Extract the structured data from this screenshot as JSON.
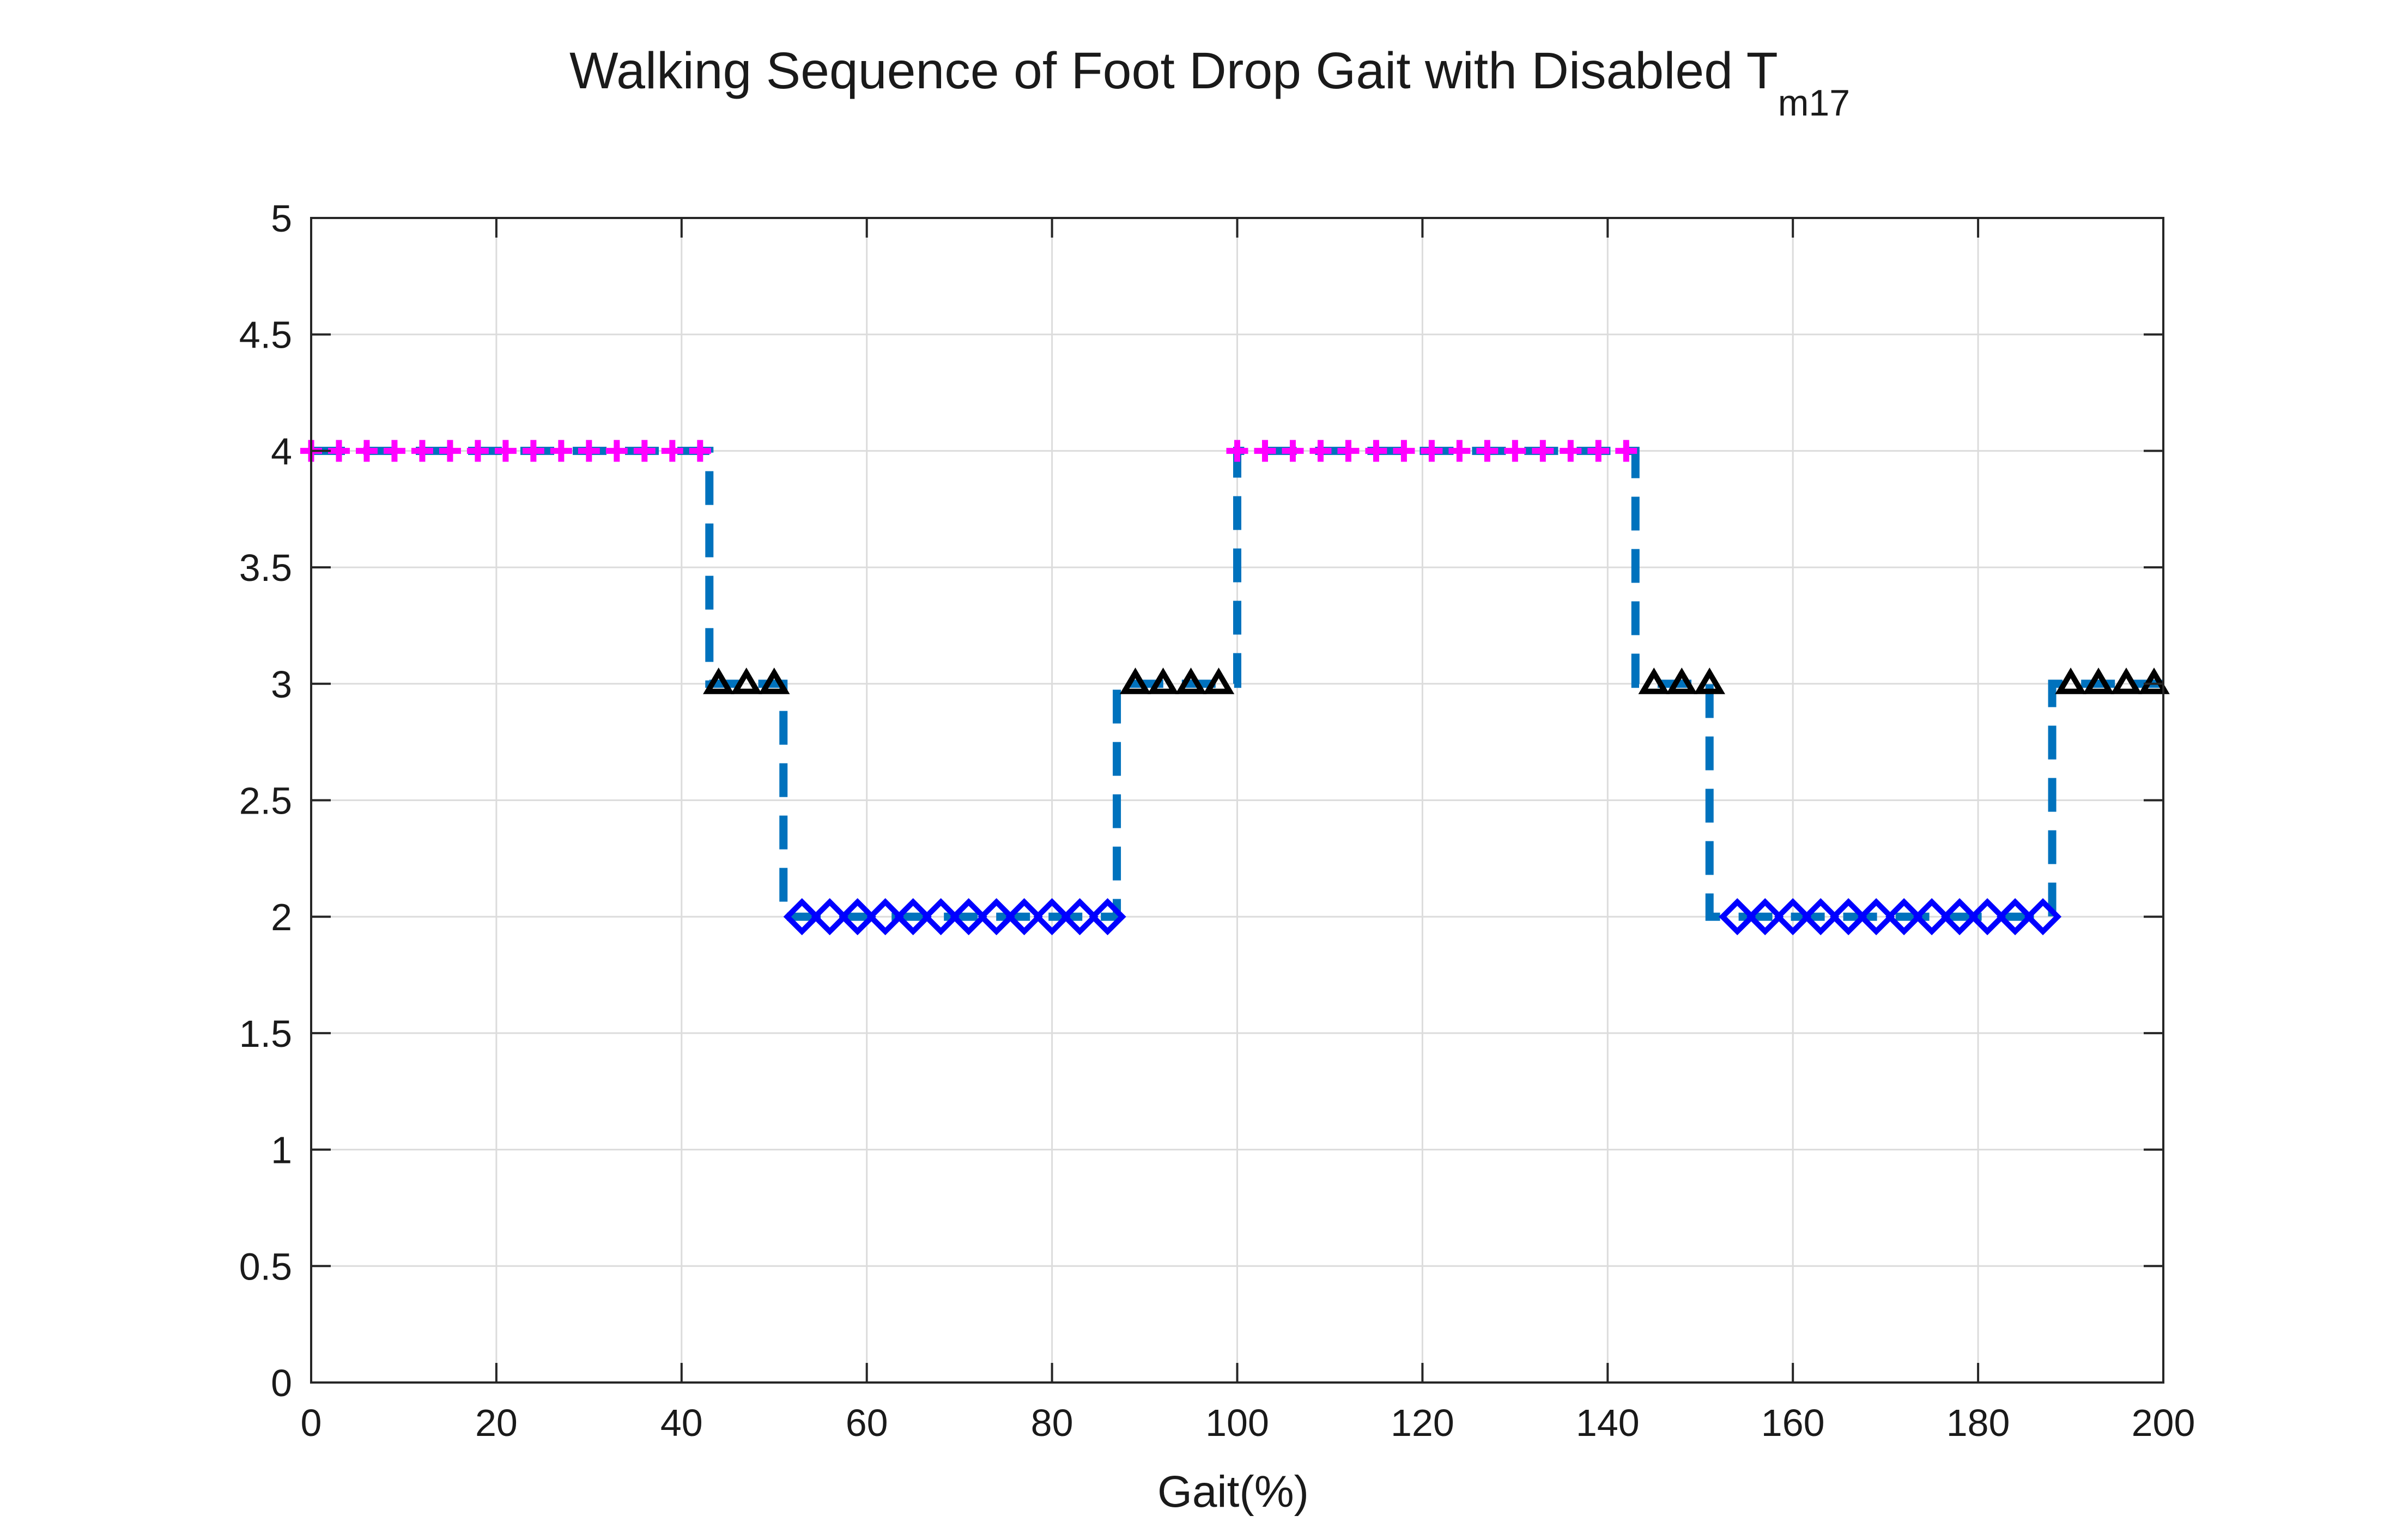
{
  "chart_data": {
    "type": "line",
    "title": "Walking Sequence of Foot Drop Gait with Disabled T",
    "title_subscript": "m17",
    "xlabel": "Gait(%)",
    "ylabel": "",
    "xlim": [
      0,
      200
    ],
    "ylim": [
      0,
      5
    ],
    "xticks": [
      0,
      20,
      40,
      60,
      80,
      100,
      120,
      140,
      160,
      180,
      200
    ],
    "xtick_labels": [
      "0",
      "20",
      "40",
      "60",
      "80",
      "100",
      "120",
      "140",
      "160",
      "180",
      "200"
    ],
    "yticks": [
      0,
      0.5,
      1,
      1.5,
      2,
      2.5,
      3,
      3.5,
      4,
      4.5,
      5
    ],
    "ytick_labels": [
      "0",
      "0.5",
      "1",
      "1.5",
      "2",
      "2.5",
      "3",
      "3.5",
      "4",
      "4.5",
      "5"
    ],
    "grid": true,
    "legend": "none",
    "line": {
      "style": "dashed",
      "color": "#0072BD",
      "x": [
        0,
        43,
        43,
        51,
        51,
        87,
        87,
        100,
        100,
        143,
        143,
        151,
        151,
        188,
        188,
        200
      ],
      "y": [
        4,
        4,
        3,
        3,
        2,
        2,
        3,
        3,
        4,
        4,
        3,
        3,
        2,
        2,
        3,
        3
      ]
    },
    "series": [
      {
        "marker": "plus",
        "color": "#FF00FF",
        "x": [
          0,
          3,
          6,
          9,
          12,
          15,
          18,
          21,
          24,
          27,
          30,
          33,
          36,
          39,
          42,
          100,
          103,
          106,
          109,
          112,
          115,
          118,
          121,
          124,
          127,
          130,
          133,
          136,
          139,
          142
        ],
        "y": [
          4,
          4,
          4,
          4,
          4,
          4,
          4,
          4,
          4,
          4,
          4,
          4,
          4,
          4,
          4,
          4,
          4,
          4,
          4,
          4,
          4,
          4,
          4,
          4,
          4,
          4,
          4,
          4,
          4,
          4
        ]
      },
      {
        "marker": "triangle-up",
        "color": "#000000",
        "x": [
          44,
          47,
          50,
          89,
          92,
          95,
          98,
          145,
          148,
          151,
          190,
          193,
          196,
          199
        ],
        "y": [
          3,
          3,
          3,
          3,
          3,
          3,
          3,
          3,
          3,
          3,
          3,
          3,
          3,
          3
        ]
      },
      {
        "marker": "diamond",
        "color": "#0000FF",
        "x": [
          53,
          56,
          59,
          62,
          65,
          68,
          71,
          74,
          77,
          80,
          83,
          86,
          154,
          157,
          160,
          163,
          166,
          169,
          172,
          175,
          178,
          181,
          184,
          187
        ],
        "y": [
          2,
          2,
          2,
          2,
          2,
          2,
          2,
          2,
          2,
          2,
          2,
          2,
          2,
          2,
          2,
          2,
          2,
          2,
          2,
          2,
          2,
          2,
          2,
          2
        ]
      }
    ]
  }
}
